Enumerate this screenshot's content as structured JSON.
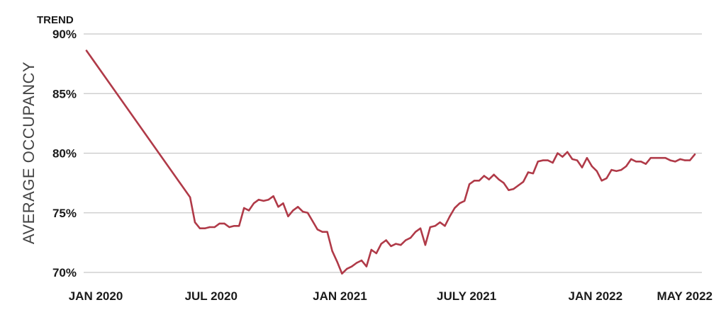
{
  "chart_data": {
    "type": "line",
    "corner_label": "TREND",
    "ylabel": "AVERAGE OCCUPANCY",
    "xlabel": "",
    "ylim": [
      70,
      90
    ],
    "y_ticks": [
      {
        "value": 90,
        "label": "90%"
      },
      {
        "value": 85,
        "label": "85%"
      },
      {
        "value": 80,
        "label": "80%"
      },
      {
        "value": 75,
        "label": "75%"
      },
      {
        "value": 70,
        "label": "70%"
      }
    ],
    "x_ticks": [
      {
        "x": "2020-01",
        "label": "JAN 2020"
      },
      {
        "x": "2020-07",
        "label": "JUL 2020"
      },
      {
        "x": "2021-01",
        "label": "JAN 2021"
      },
      {
        "x": "2021-07",
        "label": "JULY 2021"
      },
      {
        "x": "2022-01",
        "label": "JAN 2022"
      },
      {
        "x": "2022-05",
        "label": "MAY 2022"
      }
    ],
    "grid": true,
    "line_color": "#b03a48",
    "series": [
      {
        "x": [
          "2020-01-05",
          "2020-06-01",
          "2020-06-08",
          "2020-06-15",
          "2020-06-22",
          "2020-06-29",
          "2020-07-06",
          "2020-07-13",
          "2020-07-20",
          "2020-07-27",
          "2020-08-03",
          "2020-08-10",
          "2020-08-17",
          "2020-08-24",
          "2020-08-31",
          "2020-09-07",
          "2020-09-14",
          "2020-09-21",
          "2020-09-28",
          "2020-10-05",
          "2020-10-12",
          "2020-10-19",
          "2020-10-26",
          "2020-11-02",
          "2020-11-09",
          "2020-11-16",
          "2020-11-23",
          "2020-11-30",
          "2020-12-07",
          "2020-12-14",
          "2020-12-21",
          "2020-12-28",
          "2021-01-04",
          "2021-01-11",
          "2021-01-18",
          "2021-01-25",
          "2021-02-01",
          "2021-02-08",
          "2021-02-15",
          "2021-02-22",
          "2021-03-01",
          "2021-03-08",
          "2021-03-15",
          "2021-03-22",
          "2021-03-29",
          "2021-04-05",
          "2021-04-12",
          "2021-04-19",
          "2021-04-26",
          "2021-05-03",
          "2021-05-10",
          "2021-05-17",
          "2021-05-24",
          "2021-05-31",
          "2021-06-07",
          "2021-06-14",
          "2021-06-21",
          "2021-06-28",
          "2021-07-05",
          "2021-07-12",
          "2021-07-19",
          "2021-07-26",
          "2021-08-02",
          "2021-08-09",
          "2021-08-16",
          "2021-08-23",
          "2021-08-30",
          "2021-09-06",
          "2021-09-13",
          "2021-09-20",
          "2021-09-27",
          "2021-10-04",
          "2021-10-11",
          "2021-10-18",
          "2021-10-25",
          "2021-11-01",
          "2021-11-08",
          "2021-11-15",
          "2021-11-22",
          "2021-11-29",
          "2021-12-06",
          "2021-12-13",
          "2021-12-20",
          "2021-12-27",
          "2022-01-03",
          "2022-01-10",
          "2022-01-17",
          "2022-01-24",
          "2022-01-31",
          "2022-02-07",
          "2022-02-14",
          "2022-02-21",
          "2022-02-28",
          "2022-03-07",
          "2022-03-14",
          "2022-03-21",
          "2022-03-28",
          "2022-04-04",
          "2022-04-11",
          "2022-04-18",
          "2022-04-25",
          "2022-05-02",
          "2022-05-09",
          "2022-05-16",
          "2022-05-23"
        ],
        "values": [
          88.6,
          76.3,
          74.2,
          73.7,
          73.7,
          73.8,
          73.8,
          74.1,
          74.1,
          73.8,
          73.9,
          73.9,
          75.4,
          75.2,
          75.8,
          76.1,
          76.0,
          76.1,
          76.4,
          75.5,
          75.8,
          74.7,
          75.2,
          75.5,
          75.1,
          75.0,
          74.3,
          73.6,
          73.4,
          73.4,
          71.8,
          70.9,
          69.9,
          70.3,
          70.5,
          70.8,
          71.0,
          70.5,
          71.9,
          71.6,
          72.4,
          72.7,
          72.2,
          72.4,
          72.3,
          72.7,
          72.9,
          73.4,
          73.7,
          72.3,
          73.8,
          73.9,
          74.2,
          73.9,
          74.7,
          75.4,
          75.8,
          76.0,
          77.4,
          77.7,
          77.7,
          78.1,
          77.8,
          78.2,
          77.8,
          77.5,
          76.9,
          77.0,
          77.3,
          77.6,
          78.4,
          78.3,
          79.3,
          79.4,
          79.4,
          79.2,
          80.0,
          79.7,
          80.1,
          79.5,
          79.4,
          78.8,
          79.6,
          78.9,
          78.5,
          77.7,
          77.9,
          78.6,
          78.5,
          78.6,
          78.9,
          79.5,
          79.3,
          79.3,
          79.1,
          79.6,
          79.6,
          79.6,
          79.6,
          79.4,
          79.3,
          79.5,
          79.4,
          79.4,
          79.9
        ]
      }
    ]
  }
}
